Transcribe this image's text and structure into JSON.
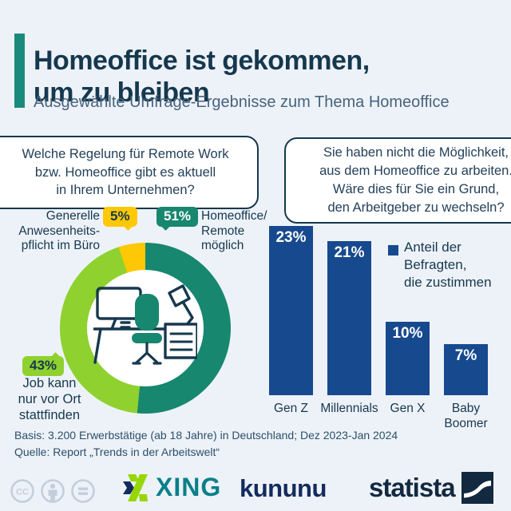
{
  "colors": {
    "background": "#edf2f8",
    "navy": "#16384e",
    "text": "#23405a",
    "subtitle": "#47637d",
    "accent_teal": "#1a8a7d",
    "donut_teal": "#17876f",
    "donut_green": "#8fd12f",
    "donut_yellow": "#ffc805",
    "bar_blue": "#17498e",
    "footer_text": "#2b4f6b",
    "xing_teal": "#0a7f8a",
    "xing_green": "#97d700",
    "kununu_navy": "#142b5e",
    "statista_navy": "#132940",
    "cc_gray": "#c3cedd",
    "white": "#ffffff"
  },
  "header": {
    "title": "Homeoffice ist gekommen,\num zu bleiben",
    "subtitle": "Ausgewählte Umfrage-Ergebnisse zum Thema Homeoffice"
  },
  "chart_data": [
    {
      "type": "pie",
      "subtype": "donut",
      "question": "Welche Regelung für Remote Work\nbzw. Homeoffice gibt es aktuell\nin Ihrem Unternehmen?",
      "unit": "%",
      "start": "12 o'clock, clockwise",
      "slices": [
        {
          "name": "Homeoffice/Remote möglich",
          "value": 51,
          "pct_label": "51%",
          "color": "#17876f",
          "label_display": "Homeoffice/\nRemote\nmöglich"
        },
        {
          "name": "Job kann nur vor Ort stattfinden",
          "value": 43,
          "pct_label": "43%",
          "color": "#8fd12f",
          "label_display": "Job kann\nnur vor Ort\nstattfinden"
        },
        {
          "name": "Generelle Anwesenheitspflicht im Büro",
          "value": 5,
          "pct_label": "5%",
          "color": "#ffc805",
          "label_display": "Generelle\nAnwesenheits-\npflicht im Büro"
        }
      ]
    },
    {
      "type": "bar",
      "question": "Sie haben nicht die Möglichkeit,\naus dem Homeoffice zu arbeiten.\nWäre dies für Sie ein Grund,\nden Arbeitgeber zu wechseln?",
      "categories": [
        "Gen Z",
        "Millennials",
        "Gen X",
        "Baby Boomer"
      ],
      "values": [
        23,
        21,
        10,
        7
      ],
      "value_labels": [
        "23%",
        "21%",
        "10%",
        "7%"
      ],
      "series_color": "#17498e",
      "legend": "Anteil der\nBefragten,\ndie zustimmen",
      "unit": "%",
      "ylim": [
        0,
        25
      ],
      "grid": false
    }
  ],
  "footer": {
    "basis": "Basis: 3.200 Erwerbstätige (ab 18 Jahre) in Deutschland; Dez 2023-Jan 2024",
    "quelle": "Quelle: Report „Trends in der Arbeitswelt“"
  },
  "logos": {
    "cc_label": "CC",
    "xing_text": "XING",
    "kununu_text": "kununu",
    "statista_text": "statista"
  }
}
